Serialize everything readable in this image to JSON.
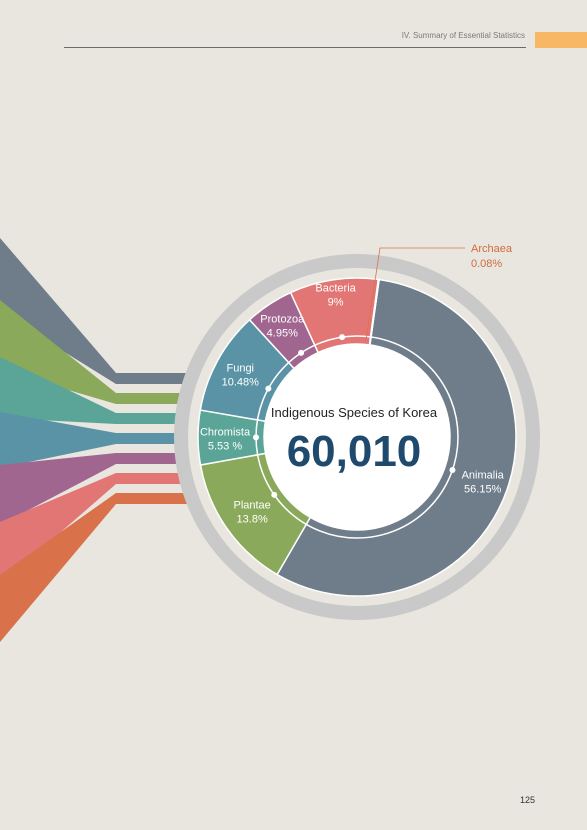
{
  "header": {
    "section_title": "IV. Summary of Essential Statistics"
  },
  "page_number": "125",
  "chart_data": {
    "type": "pie",
    "center_title": "Indigenous Species of Korea",
    "total": "60,010",
    "slices": [
      {
        "name": "Animalia",
        "label": "56.15%",
        "value": 56.15,
        "color": "#6f7c8a"
      },
      {
        "name": "Plantae",
        "label": "13.8%",
        "value": 13.8,
        "color": "#8aa95a"
      },
      {
        "name": "Chromista",
        "label": "5.53 %",
        "value": 5.53,
        "color": "#5aa597"
      },
      {
        "name": "Fungi",
        "label": "10.48%",
        "value": 10.48,
        "color": "#5b93a6"
      },
      {
        "name": "Protozoa",
        "label": "4.95%",
        "value": 4.95,
        "color": "#a0668f"
      },
      {
        "name": "Bacteria",
        "label": "9%",
        "value": 9.0,
        "color": "#e27674"
      },
      {
        "name": "Archaea",
        "label": "0.08%",
        "value": 0.08,
        "color": "#d9714a"
      }
    ]
  }
}
